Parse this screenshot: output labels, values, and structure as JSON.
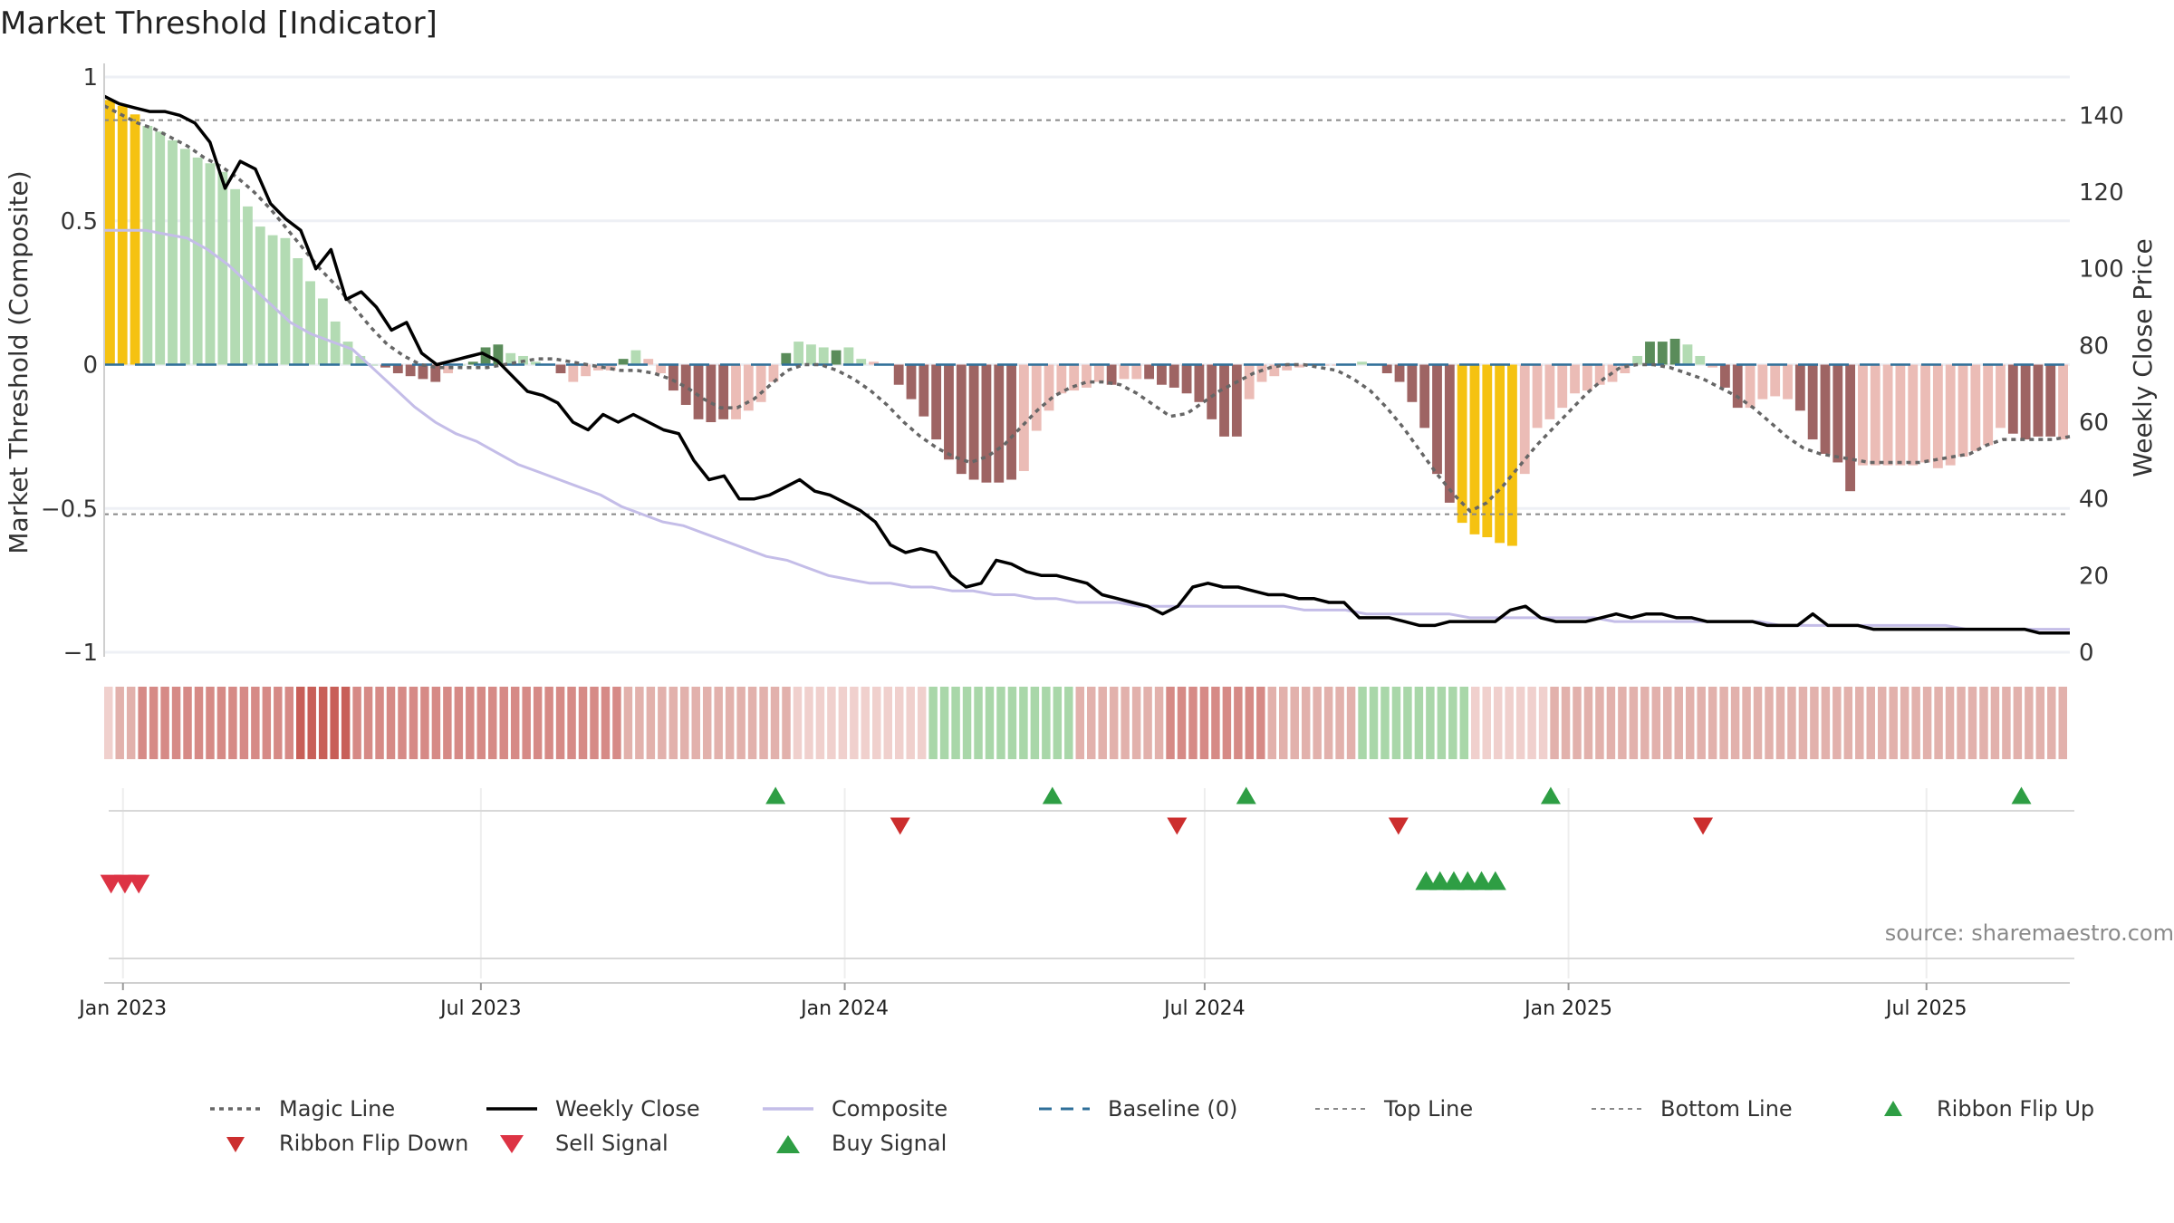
{
  "title": "Market Threshold [Indicator]",
  "source_label": "source: sharemaestro.com",
  "colors": {
    "magic_line": "#666666",
    "weekly_close": "#000000",
    "composite": "#c4bde8",
    "baseline": "#2f6f99",
    "top_line": "#888888",
    "bottom_line": "#888888",
    "extreme_bar": "#f5c211",
    "pos_light": "#b3dbb3",
    "pos_dark": "#5a8c5a",
    "neg_light": "#ebbcb6",
    "neg_dark": "#9e6463",
    "ribbon_flip_up": "#2e9e44",
    "ribbon_flip_down": "#cc2e2e",
    "sell_signal": "#dd3344",
    "buy_signal": "#2e9e44"
  },
  "chart_data": {
    "type": "bar",
    "title": "Market Threshold [Indicator]",
    "ylabel_left": "Market Threshold (Composite)",
    "ylabel_right": "Weekly Close Price",
    "ylim_left": [
      -1,
      1
    ],
    "ylim_right": [
      0,
      150
    ],
    "yticks_left": [
      "1",
      "0.5",
      "0",
      "−0.5",
      "−1"
    ],
    "yticks_left_values": [
      1,
      0.5,
      0,
      -0.5,
      -1
    ],
    "yticks_right": [
      "0",
      "20",
      "40",
      "60",
      "80",
      "100",
      "120",
      "140"
    ],
    "yticks_right_values": [
      0,
      20,
      40,
      60,
      80,
      100,
      120,
      140
    ],
    "x_start": "2022-12-26",
    "x_weeks": 142,
    "x_ticks": [
      {
        "label": "Jan 2023",
        "date": "2023-01-01"
      },
      {
        "label": "Jul 2023",
        "date": "2023-07-01"
      },
      {
        "label": "Jan 2024",
        "date": "2024-01-01"
      },
      {
        "label": "Jul 2024",
        "date": "2024-07-01"
      },
      {
        "label": "Jan 2025",
        "date": "2025-01-01"
      },
      {
        "label": "Jul 2025",
        "date": "2025-07-01"
      }
    ],
    "top_line": 0.85,
    "bottom_line": -0.52,
    "baseline": 0,
    "threshold_bars": [
      0.92,
      0.9,
      0.87,
      0.83,
      0.81,
      0.78,
      0.75,
      0.72,
      0.7,
      0.67,
      0.61,
      0.55,
      0.48,
      0.45,
      0.44,
      0.37,
      0.29,
      0.23,
      0.15,
      0.08,
      0.03,
      0.0,
      -0.01,
      -0.03,
      -0.04,
      -0.05,
      -0.06,
      -0.03,
      0.0,
      0.01,
      0.06,
      0.07,
      0.04,
      0.03,
      0.01,
      0.0,
      -0.03,
      -0.06,
      -0.04,
      -0.02,
      -0.02,
      0.02,
      0.05,
      0.02,
      -0.03,
      -0.09,
      -0.14,
      -0.19,
      -0.2,
      -0.19,
      -0.19,
      -0.16,
      -0.13,
      -0.06,
      0.04,
      0.08,
      0.07,
      0.06,
      0.05,
      0.06,
      0.02,
      0.01,
      0.0,
      -0.07,
      -0.12,
      -0.18,
      -0.26,
      -0.33,
      -0.38,
      -0.4,
      -0.41,
      -0.41,
      -0.4,
      -0.37,
      -0.23,
      -0.16,
      -0.1,
      -0.09,
      -0.08,
      -0.06,
      -0.07,
      -0.05,
      -0.05,
      -0.05,
      -0.07,
      -0.08,
      -0.1,
      -0.13,
      -0.19,
      -0.25,
      -0.25,
      -0.12,
      -0.06,
      -0.04,
      -0.02,
      -0.01,
      0.0,
      0.0,
      0.0,
      0.0,
      0.01,
      0.0,
      -0.03,
      -0.06,
      -0.13,
      -0.22,
      -0.38,
      -0.48,
      -0.55,
      -0.59,
      -0.6,
      -0.62,
      -0.63,
      -0.38,
      -0.22,
      -0.19,
      -0.15,
      -0.1,
      -0.09,
      -0.07,
      -0.06,
      -0.03,
      0.03,
      0.08,
      0.08,
      0.09,
      0.07,
      0.03,
      -0.01,
      -0.08,
      -0.15,
      -0.15,
      -0.12,
      -0.11,
      -0.12,
      -0.16,
      -0.26,
      -0.31,
      -0.34,
      -0.44,
      -0.35,
      -0.35,
      -0.35,
      -0.35,
      -0.35,
      -0.34,
      -0.36,
      -0.35,
      -0.32,
      -0.3,
      -0.28,
      -0.22,
      -0.24,
      -0.26,
      -0.25,
      -0.25,
      -0.26
    ],
    "bar_colors": [
      "extreme",
      "extreme",
      "extreme",
      "pos_light",
      "pos_light",
      "pos_light",
      "pos_light",
      "pos_light",
      "pos_light",
      "pos_light",
      "pos_light",
      "pos_light",
      "pos_light",
      "pos_light",
      "pos_light",
      "pos_light",
      "pos_light",
      "pos_light",
      "pos_light",
      "pos_light",
      "pos_light",
      "pos_light",
      "neg_dark",
      "neg_dark",
      "neg_dark",
      "neg_dark",
      "neg_dark",
      "neg_light",
      "pos_light",
      "pos_dark",
      "pos_dark",
      "pos_dark",
      "pos_light",
      "pos_light",
      "pos_light",
      "neg_light",
      "neg_dark",
      "neg_light",
      "neg_light",
      "neg_light",
      "neg_light",
      "pos_dark",
      "pos_light",
      "neg_light",
      "neg_light",
      "neg_dark",
      "neg_dark",
      "neg_dark",
      "neg_dark",
      "neg_dark",
      "neg_light",
      "neg_light",
      "neg_light",
      "neg_light",
      "pos_dark",
      "pos_light",
      "pos_light",
      "pos_light",
      "pos_dark",
      "pos_light",
      "pos_light",
      "neg_light",
      "neg_dark",
      "neg_dark",
      "neg_dark",
      "neg_dark",
      "neg_dark",
      "neg_dark",
      "neg_dark",
      "neg_dark",
      "neg_dark",
      "neg_dark",
      "neg_dark",
      "neg_light",
      "neg_light",
      "neg_light",
      "neg_light",
      "neg_light",
      "neg_light",
      "neg_light",
      "neg_dark",
      "neg_light",
      "neg_light",
      "neg_dark",
      "neg_dark",
      "neg_dark",
      "neg_dark",
      "neg_dark",
      "neg_dark",
      "neg_dark",
      "neg_dark",
      "neg_light",
      "neg_light",
      "neg_light",
      "neg_light",
      "neg_light",
      "neg_light",
      "neg_light",
      "neg_light",
      "neg_light",
      "pos_light",
      "neg_light",
      "neg_dark",
      "neg_dark",
      "neg_dark",
      "neg_dark",
      "neg_dark",
      "neg_dark",
      "extreme",
      "extreme",
      "extreme",
      "extreme",
      "extreme",
      "neg_light",
      "neg_light",
      "neg_light",
      "neg_light",
      "neg_light",
      "neg_light",
      "neg_light",
      "neg_light",
      "neg_light",
      "pos_light",
      "pos_dark",
      "pos_dark",
      "pos_dark",
      "pos_light",
      "pos_light",
      "neg_light",
      "neg_dark",
      "neg_dark",
      "neg_light",
      "neg_light",
      "neg_light",
      "neg_light",
      "neg_dark",
      "neg_dark",
      "neg_dark",
      "neg_dark",
      "neg_dark",
      "neg_light",
      "neg_light",
      "neg_light",
      "neg_light",
      "neg_light",
      "neg_light",
      "neg_light",
      "neg_light",
      "neg_light",
      "neg_light",
      "neg_light",
      "neg_light",
      "neg_dark",
      "neg_dark",
      "neg_dark",
      "neg_dark",
      "neg_light"
    ],
    "magic_line": [
      0.9,
      0.87,
      0.84,
      0.82,
      0.79,
      0.76,
      0.72,
      0.69,
      0.65,
      0.6,
      0.54,
      0.47,
      0.4,
      0.33,
      0.27,
      0.2,
      0.13,
      0.07,
      0.03,
      -0.0,
      -0.01,
      -0.01,
      -0.01,
      -0.01,
      0.0,
      0.01,
      0.02,
      0.02,
      0.01,
      0.0,
      -0.01,
      -0.02,
      -0.02,
      -0.03,
      -0.05,
      -0.08,
      -0.12,
      -0.15,
      -0.15,
      -0.12,
      -0.07,
      -0.02,
      0.0,
      0.0,
      -0.02,
      -0.05,
      -0.09,
      -0.14,
      -0.2,
      -0.25,
      -0.29,
      -0.32,
      -0.34,
      -0.32,
      -0.28,
      -0.22,
      -0.16,
      -0.11,
      -0.08,
      -0.06,
      -0.06,
      -0.07,
      -0.1,
      -0.14,
      -0.18,
      -0.17,
      -0.13,
      -0.09,
      -0.06,
      -0.03,
      -0.01,
      0.0,
      0.0,
      -0.01,
      -0.02,
      -0.05,
      -0.09,
      -0.15,
      -0.22,
      -0.3,
      -0.38,
      -0.45,
      -0.51,
      -0.48,
      -0.42,
      -0.35,
      -0.28,
      -0.22,
      -0.16,
      -0.1,
      -0.05,
      -0.01,
      0.0,
      0.0,
      -0.01,
      -0.03,
      -0.05,
      -0.08,
      -0.11,
      -0.15,
      -0.2,
      -0.25,
      -0.29,
      -0.31,
      -0.32,
      -0.33,
      -0.34,
      -0.34,
      -0.34,
      -0.34,
      -0.33,
      -0.32,
      -0.31,
      -0.28,
      -0.26,
      -0.26,
      -0.26,
      -0.26,
      -0.25
    ],
    "weekly_close": [
      145,
      143,
      142,
      141,
      141,
      140,
      138,
      133,
      121,
      128,
      126,
      117,
      113,
      110,
      100,
      105,
      92,
      94,
      90,
      84,
      86,
      78,
      75,
      76,
      77,
      78,
      76,
      72,
      68,
      67,
      65,
      60,
      58,
      62,
      60,
      62,
      60,
      58,
      57,
      50,
      45,
      46,
      40,
      40,
      41,
      43,
      45,
      42,
      41,
      39,
      37,
      34,
      28,
      26,
      27,
      26,
      20,
      17,
      18,
      24,
      23,
      21,
      20,
      20,
      19,
      18,
      15,
      14,
      13,
      12,
      10,
      12,
      17,
      18,
      17,
      17,
      16,
      15,
      15,
      14,
      14,
      13,
      13,
      9,
      9,
      9,
      8,
      7,
      7,
      8,
      8,
      8,
      8,
      11,
      12,
      9,
      8,
      8,
      8,
      9,
      10,
      9,
      10,
      10,
      9,
      9,
      8,
      8,
      8,
      8,
      7,
      7,
      7,
      10,
      7,
      7,
      7,
      6,
      6,
      6,
      6,
      6,
      6,
      6,
      6,
      6,
      6,
      6,
      5,
      5,
      5
    ],
    "composite": [
      110,
      110,
      110,
      109,
      108,
      105,
      101,
      96,
      91,
      86,
      83,
      81,
      79,
      74,
      69,
      64,
      60,
      57,
      55,
      52,
      49,
      47,
      45,
      43,
      41,
      38,
      36,
      34,
      33,
      31,
      29,
      27,
      25,
      24,
      22,
      20,
      19,
      18,
      18,
      17,
      17,
      16,
      16,
      15,
      15,
      14,
      14,
      13,
      13,
      13,
      12,
      12,
      12,
      12,
      12,
      12,
      12,
      12,
      11,
      11,
      11,
      10,
      10,
      10,
      10,
      10,
      9,
      9,
      9,
      9,
      9,
      9,
      9,
      8,
      8,
      8,
      8,
      8,
      8,
      8,
      8,
      7,
      7,
      7,
      7,
      7,
      7,
      7,
      7,
      7,
      6,
      6,
      6,
      6,
      6,
      6
    ],
    "ribbon": [
      -1,
      -2,
      -2,
      -3,
      -3,
      -3,
      -3,
      -3,
      -3,
      -3,
      -3,
      -3,
      -3,
      -3,
      -3,
      -3,
      -3,
      -4,
      -4,
      -4,
      -4,
      -4,
      -3,
      -3,
      -3,
      -3,
      -3,
      -3,
      -3,
      -3,
      -3,
      -3,
      -3,
      -3,
      -3,
      -3,
      -3,
      -3,
      -3,
      -3,
      -3,
      -3,
      -3,
      -3,
      -3,
      -3,
      -2,
      -2,
      -2,
      -2,
      -2,
      -2,
      -2,
      -2,
      -2,
      -2,
      -2,
      -2,
      -2,
      -2,
      -2,
      -1,
      -1,
      -1,
      -1,
      -1,
      -1,
      -1,
      -1,
      -1,
      -1,
      -1,
      -1,
      2,
      2,
      2,
      2,
      2,
      2,
      2,
      2,
      2,
      2,
      2,
      2,
      2,
      -2,
      -2,
      -2,
      -2,
      -2,
      -2,
      -2,
      -2,
      -3,
      -3,
      -3,
      -3,
      -3,
      -3,
      -3,
      -3,
      -3,
      -2,
      -2,
      -2,
      -2,
      -2,
      -2,
      -2,
      -2,
      2,
      2,
      2,
      2,
      2,
      2,
      2,
      2,
      2,
      2,
      -1,
      -1,
      -1,
      -1,
      -1,
      -1,
      -1,
      -2,
      -2,
      -2,
      -2,
      -2,
      -2,
      -2,
      -2,
      -2,
      -2,
      -2,
      -2,
      -2,
      -2,
      -2,
      -2,
      -2,
      -2,
      -2,
      -2,
      -2,
      -2,
      -2,
      -2,
      -2,
      -2,
      -2,
      -2,
      -2,
      -2,
      -2,
      -2,
      -2,
      -2,
      -2,
      -2,
      -2,
      -2,
      -2,
      -2,
      -2,
      -2,
      -2,
      -2,
      -2,
      -2
    ],
    "ribbon_flip_up": [
      "2023-11-27",
      "2024-04-15",
      "2024-07-22",
      "2024-12-23",
      "2025-08-18"
    ],
    "ribbon_flip_down": [
      "2024-01-29",
      "2024-06-17",
      "2024-10-07",
      "2025-03-10"
    ],
    "sell_signals": [
      "2022-12-26",
      "2023-01-02",
      "2023-01-09"
    ],
    "buy_signals": [
      "2024-10-21",
      "2024-10-28",
      "2024-11-04",
      "2024-11-11",
      "2024-11-18",
      "2024-11-25"
    ]
  },
  "legend": [
    {
      "key": "magic_line",
      "label": "Magic Line"
    },
    {
      "key": "weekly_close",
      "label": "Weekly Close"
    },
    {
      "key": "composite",
      "label": "Composite"
    },
    {
      "key": "baseline",
      "label": "Baseline (0)"
    },
    {
      "key": "top_line",
      "label": "Top Line"
    },
    {
      "key": "bottom_line",
      "label": "Bottom Line"
    },
    {
      "key": "ribbon_flip_up",
      "label": "Ribbon Flip Up"
    },
    {
      "key": "ribbon_flip_down",
      "label": "Ribbon Flip Down"
    },
    {
      "key": "sell_signal",
      "label": "Sell Signal"
    },
    {
      "key": "buy_signal",
      "label": "Buy Signal"
    }
  ]
}
